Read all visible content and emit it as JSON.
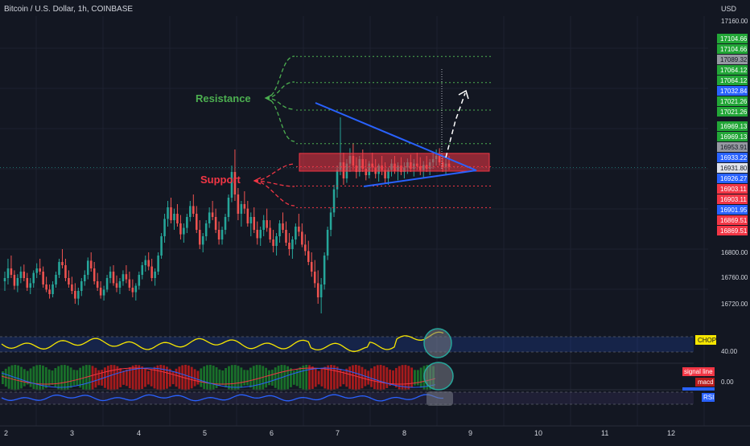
{
  "chart_title": "Bitcoin / U.S. Dollar, 1h, COINBASE",
  "currency": "USD",
  "colors": {
    "background": "#131722",
    "up": "#26a69a",
    "down": "#ef5350",
    "resistance": "#4caf50",
    "support": "#f23645",
    "trendline": "#2962ff",
    "chop": "#f7e600",
    "rsi": "#2962ff",
    "macd_hist_up": "#1b7a2b",
    "macd_hist_down": "#b71c1c",
    "highlight": "#26a69a"
  },
  "annotations": {
    "resistance_label": "Resistance",
    "support_label": "Support"
  },
  "indicators": {
    "chop_label": "CHOP",
    "chop_value": "40.00",
    "signal_label": "signal line",
    "macd_label": "macd",
    "macd_value": "0.00",
    "rsi_label": "RSI"
  },
  "chart_data": {
    "type": "candlestick",
    "x_ticks": [
      "2",
      "3",
      "4",
      "5",
      "6",
      "7",
      "8",
      "9",
      "10",
      "11",
      "12"
    ],
    "y_ticks": [
      "17160.00",
      "16800.00",
      "16760.00",
      "16720.00"
    ],
    "price_labels": [
      {
        "value": "17104.66",
        "kind": "green"
      },
      {
        "value": "17104.66",
        "kind": "green"
      },
      {
        "value": "17089.32",
        "kind": "gray"
      },
      {
        "value": "17064.12",
        "kind": "green"
      },
      {
        "value": "17064.12",
        "kind": "green"
      },
      {
        "value": "17032.84",
        "kind": "blue"
      },
      {
        "value": "17021.26",
        "kind": "green"
      },
      {
        "value": "17021.26",
        "kind": "green"
      },
      {
        "value": "16969.13",
        "kind": "green"
      },
      {
        "value": "16969.13",
        "kind": "green"
      },
      {
        "value": "16953.91",
        "kind": "gray"
      },
      {
        "value": "16933.22",
        "kind": "blue"
      },
      {
        "value": "16931.80",
        "kind": "white"
      },
      {
        "value": "16926.27",
        "kind": "blue"
      },
      {
        "value": "16903.11",
        "kind": "red"
      },
      {
        "value": "16903.11",
        "kind": "red"
      },
      {
        "value": "16901.95",
        "kind": "blue"
      },
      {
        "value": "16869.51",
        "kind": "red"
      },
      {
        "value": "16869.51",
        "kind": "red"
      }
    ],
    "ylim": [
      16700,
      17180
    ],
    "resistance_levels": [
      17104.66,
      17064.12,
      17021.26,
      16969.13
    ],
    "support_levels": [
      16933.22,
      16903.11,
      16869.51
    ],
    "zone": [
      16926.27,
      16953.91
    ],
    "candles": [
      [
        16755,
        16770,
        16740,
        16760
      ],
      [
        16760,
        16790,
        16750,
        16775
      ],
      [
        16775,
        16795,
        16760,
        16765
      ],
      [
        16765,
        16772,
        16742,
        16748
      ],
      [
        16748,
        16766,
        16738,
        16760
      ],
      [
        16760,
        16778,
        16752,
        16770
      ],
      [
        16770,
        16781,
        16755,
        16760
      ],
      [
        16760,
        16768,
        16740,
        16745
      ],
      [
        16745,
        16760,
        16735,
        16752
      ],
      [
        16752,
        16772,
        16745,
        16768
      ],
      [
        16768,
        16783,
        16760,
        16775
      ],
      [
        16775,
        16790,
        16765,
        16770
      ],
      [
        16770,
        16778,
        16745,
        16750
      ],
      [
        16750,
        16762,
        16738,
        16742
      ],
      [
        16742,
        16750,
        16728,
        16735
      ],
      [
        16735,
        16755,
        16730,
        16750
      ],
      [
        16750,
        16770,
        16745,
        16765
      ],
      [
        16765,
        16790,
        16760,
        16785
      ],
      [
        16785,
        16805,
        16775,
        16780
      ],
      [
        16780,
        16790,
        16755,
        16760
      ],
      [
        16760,
        16772,
        16745,
        16750
      ],
      [
        16750,
        16762,
        16735,
        16740
      ],
      [
        16740,
        16752,
        16720,
        16728
      ],
      [
        16728,
        16745,
        16718,
        16740
      ],
      [
        16740,
        16760,
        16732,
        16755
      ],
      [
        16755,
        16772,
        16748,
        16765
      ],
      [
        16765,
        16792,
        16758,
        16787
      ],
      [
        16787,
        16800,
        16770,
        16775
      ],
      [
        16775,
        16785,
        16750,
        16755
      ],
      [
        16755,
        16768,
        16740,
        16745
      ],
      [
        16745,
        16755,
        16728,
        16733
      ],
      [
        16733,
        16748,
        16725,
        16742
      ],
      [
        16742,
        16765,
        16738,
        16760
      ],
      [
        16760,
        16778,
        16752,
        16770
      ],
      [
        16770,
        16780,
        16748,
        16752
      ],
      [
        16752,
        16764,
        16738,
        16745
      ],
      [
        16745,
        16760,
        16735,
        16755
      ],
      [
        16755,
        16772,
        16748,
        16766
      ],
      [
        16766,
        16780,
        16752,
        16758
      ],
      [
        16758,
        16770,
        16740,
        16745
      ],
      [
        16745,
        16758,
        16730,
        16738
      ],
      [
        16738,
        16752,
        16725,
        16748
      ],
      [
        16748,
        16770,
        16742,
        16765
      ],
      [
        16765,
        16785,
        16758,
        16780
      ],
      [
        16780,
        16795,
        16770,
        16788
      ],
      [
        16788,
        16800,
        16772,
        16778
      ],
      [
        16778,
        16790,
        16755,
        16760
      ],
      [
        16760,
        16775,
        16748,
        16770
      ],
      [
        16770,
        16800,
        16765,
        16795
      ],
      [
        16795,
        16830,
        16790,
        16825
      ],
      [
        16825,
        16860,
        16815,
        16852
      ],
      [
        16852,
        16880,
        16840,
        16870
      ],
      [
        16870,
        16885,
        16845,
        16850
      ],
      [
        16850,
        16868,
        16835,
        16860
      ],
      [
        16860,
        16875,
        16840,
        16845
      ],
      [
        16845,
        16858,
        16820,
        16828
      ],
      [
        16828,
        16845,
        16815,
        16838
      ],
      [
        16838,
        16860,
        16830,
        16855
      ],
      [
        16855,
        16880,
        16848,
        16872
      ],
      [
        16872,
        16890,
        16855,
        16860
      ],
      [
        16860,
        16872,
        16830,
        16835
      ],
      [
        16835,
        16850,
        16805,
        16812
      ],
      [
        16812,
        16830,
        16800,
        16825
      ],
      [
        16825,
        16850,
        16818,
        16845
      ],
      [
        16845,
        16870,
        16838,
        16862
      ],
      [
        16862,
        16880,
        16850,
        16855
      ],
      [
        16855,
        16868,
        16830,
        16835
      ],
      [
        16835,
        16848,
        16812,
        16820
      ],
      [
        16820,
        16840,
        16812,
        16835
      ],
      [
        16835,
        16860,
        16828,
        16855
      ],
      [
        16855,
        16890,
        16848,
        16885
      ],
      [
        16885,
        16935,
        16878,
        16925
      ],
      [
        16925,
        16960,
        16880,
        16890
      ],
      [
        16890,
        16900,
        16850,
        16860
      ],
      [
        16860,
        16880,
        16840,
        16875
      ],
      [
        16875,
        16895,
        16860,
        16868
      ],
      [
        16868,
        16880,
        16840,
        16845
      ],
      [
        16845,
        16862,
        16825,
        16855
      ],
      [
        16855,
        16870,
        16830,
        16835
      ],
      [
        16835,
        16848,
        16812,
        16822
      ],
      [
        16822,
        16840,
        16810,
        16835
      ],
      [
        16835,
        16858,
        16825,
        16850
      ],
      [
        16850,
        16868,
        16832,
        16838
      ],
      [
        16838,
        16850,
        16815,
        16820
      ],
      [
        16820,
        16835,
        16800,
        16810
      ],
      [
        16810,
        16830,
        16795,
        16825
      ],
      [
        16825,
        16850,
        16815,
        16845
      ],
      [
        16845,
        16862,
        16830,
        16835
      ],
      [
        16835,
        16848,
        16810,
        16815
      ],
      [
        16815,
        16830,
        16795,
        16805
      ],
      [
        16805,
        16825,
        16790,
        16820
      ],
      [
        16820,
        16845,
        16812,
        16840
      ],
      [
        16840,
        16860,
        16825,
        16832
      ],
      [
        16832,
        16845,
        16808,
        16812
      ],
      [
        16812,
        16828,
        16795,
        16802
      ],
      [
        16802,
        16818,
        16780,
        16785
      ],
      [
        16785,
        16800,
        16762,
        16770
      ],
      [
        16770,
        16788,
        16745,
        16752
      ],
      [
        16752,
        16772,
        16720,
        16730
      ],
      [
        16730,
        16760,
        16705,
        16750
      ],
      [
        16750,
        16800,
        16742,
        16795
      ],
      [
        16795,
        16840,
        16788,
        16835
      ],
      [
        16835,
        16870,
        16825,
        16862
      ],
      [
        16862,
        16905,
        16855,
        16898
      ],
      [
        16898,
        16935,
        16885,
        16928
      ],
      [
        16928,
        17010,
        16920,
        16940
      ],
      [
        16940,
        16955,
        16905,
        16915
      ],
      [
        16915,
        16945,
        16908,
        16938
      ],
      [
        16938,
        16962,
        16925,
        16950
      ],
      [
        16950,
        16970,
        16928,
        16935
      ],
      [
        16935,
        16948,
        16915,
        16925
      ],
      [
        16925,
        16950,
        16918,
        16945
      ],
      [
        16945,
        16960,
        16925,
        16930
      ],
      [
        16930,
        16945,
        16912,
        16920
      ],
      [
        16920,
        16942,
        16915,
        16938
      ],
      [
        16938,
        16955,
        16925,
        16932
      ],
      [
        16932,
        16945,
        16915,
        16922
      ],
      [
        16922,
        16938,
        16910,
        16935
      ],
      [
        16935,
        16950,
        16920,
        16928
      ],
      [
        16928,
        16940,
        16908,
        16915
      ],
      [
        16915,
        16932,
        16905,
        16928
      ],
      [
        16928,
        16945,
        16918,
        16938
      ],
      [
        16938,
        16950,
        16922,
        16926
      ],
      [
        16926,
        16940,
        16912,
        16935
      ],
      [
        16935,
        16948,
        16920,
        16925
      ],
      [
        16925,
        16940,
        16915,
        16932
      ],
      [
        16932,
        16946,
        16922,
        16940
      ],
      [
        16940,
        16952,
        16925,
        16930
      ],
      [
        16930,
        16945,
        16918,
        16938
      ],
      [
        16938,
        16955,
        16928,
        16934
      ],
      [
        16934,
        16948,
        16920,
        16928
      ],
      [
        16928,
        16942,
        16915,
        16936
      ],
      [
        16936,
        16950,
        16925,
        16930
      ],
      [
        16930,
        16945,
        16920,
        16940
      ],
      [
        16940,
        16955,
        16930,
        16945
      ],
      [
        16945,
        16960,
        16935,
        16950
      ],
      [
        16950,
        16962,
        16935,
        16940
      ],
      [
        16940,
        16952,
        16925,
        16932
      ],
      [
        16932,
        16945,
        16920,
        16938
      ],
      [
        16938,
        16950,
        16928,
        16933
      ]
    ]
  }
}
